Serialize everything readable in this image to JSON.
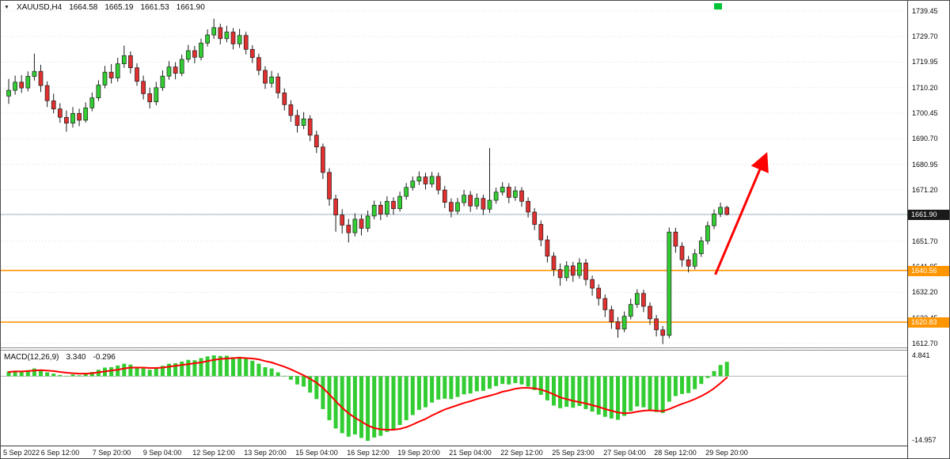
{
  "window": {
    "symbol_ohlc": {
      "marker": "▼",
      "symbol": "XAUUSD,H4",
      "open": "1664.58",
      "high": "1665.19",
      "low": "1661.53",
      "close": "1661.90"
    }
  },
  "chart_data": {
    "type": "candlestick",
    "title": "XAUUSD,H4 gold price chart with MACD",
    "symbol": "XAUUSD",
    "timeframe": "H4",
    "price_axis": {
      "ticks": [
        1739.45,
        1729.7,
        1719.95,
        1710.2,
        1700.45,
        1690.7,
        1680.95,
        1671.2,
        1661.45,
        1651.7,
        1641.95,
        1632.2,
        1622.45,
        1612.7
      ],
      "ylim": [
        1610.5,
        1741.5
      ],
      "grid": "dotted-horizontal"
    },
    "time_axis": {
      "labels": [
        "5 Sep 2022",
        "6 Sep 12:00",
        "7 Sep 20:00",
        "9 Sep 04:00",
        "12 Sep 12:00",
        "13 Sep 20:00",
        "15 Sep 04:00",
        "16 Sep 12:00",
        "19 Sep 20:00",
        "21 Sep 04:00",
        "22 Sep 12:00",
        "25 Sep 23:00",
        "27 Sep 04:00",
        "28 Sep 12:00",
        "29 Sep 20:00"
      ],
      "bars_per_label": 8
    },
    "colors": {
      "up": "#32CD32",
      "down": "#E03030",
      "wick": "#1c1c1c",
      "grid": "#dcdcdc"
    },
    "candles": [
      [
        1707.0,
        1713.5,
        1704.0,
        1709.2
      ],
      [
        1709.2,
        1714.8,
        1707.5,
        1712.3
      ],
      [
        1712.3,
        1715.0,
        1708.2,
        1710.1
      ],
      [
        1710.1,
        1716.4,
        1708.8,
        1714.5
      ],
      [
        1714.5,
        1723.2,
        1712.9,
        1716.4
      ],
      [
        1716.4,
        1718.9,
        1708.5,
        1711.0
      ],
      [
        1711.0,
        1712.6,
        1702.8,
        1705.2
      ],
      [
        1705.2,
        1707.9,
        1700.4,
        1702.1
      ],
      [
        1702.1,
        1704.3,
        1696.8,
        1698.9
      ],
      [
        1698.9,
        1701.5,
        1693.4,
        1696.7
      ],
      [
        1696.7,
        1702.8,
        1695.0,
        1700.4
      ],
      [
        1700.4,
        1702.2,
        1695.5,
        1697.8
      ],
      [
        1697.8,
        1704.6,
        1696.9,
        1702.5
      ],
      [
        1702.5,
        1708.4,
        1701.2,
        1706.3
      ],
      [
        1706.3,
        1713.0,
        1705.1,
        1711.2
      ],
      [
        1711.2,
        1718.5,
        1710.0,
        1716.1
      ],
      [
        1716.1,
        1719.2,
        1711.8,
        1713.9
      ],
      [
        1713.9,
        1721.6,
        1712.5,
        1719.3
      ],
      [
        1719.3,
        1726.2,
        1717.8,
        1722.4
      ],
      [
        1722.4,
        1724.0,
        1715.6,
        1717.8
      ],
      [
        1717.8,
        1719.5,
        1710.9,
        1712.6
      ],
      [
        1712.6,
        1714.8,
        1705.7,
        1707.9
      ],
      [
        1707.9,
        1710.2,
        1702.3,
        1704.8
      ],
      [
        1704.8,
        1712.4,
        1703.5,
        1710.2
      ],
      [
        1710.2,
        1716.8,
        1709.0,
        1714.6
      ],
      [
        1714.6,
        1720.3,
        1713.2,
        1718.1
      ],
      [
        1718.1,
        1719.9,
        1713.4,
        1715.7
      ],
      [
        1715.7,
        1722.8,
        1714.6,
        1721.0
      ],
      [
        1721.0,
        1726.5,
        1719.8,
        1724.3
      ],
      [
        1724.3,
        1726.1,
        1719.5,
        1721.8
      ],
      [
        1721.8,
        1728.9,
        1720.6,
        1727.2
      ],
      [
        1727.2,
        1732.4,
        1725.9,
        1730.3
      ],
      [
        1730.3,
        1736.5,
        1728.8,
        1733.1
      ],
      [
        1733.1,
        1734.6,
        1726.7,
        1728.9
      ],
      [
        1728.9,
        1733.8,
        1727.5,
        1731.4
      ],
      [
        1731.4,
        1732.9,
        1724.8,
        1726.9
      ],
      [
        1726.9,
        1732.6,
        1725.4,
        1730.1
      ],
      [
        1730.1,
        1731.5,
        1722.9,
        1724.8
      ],
      [
        1724.8,
        1726.4,
        1719.6,
        1721.7
      ],
      [
        1721.7,
        1723.2,
        1714.9,
        1716.8
      ],
      [
        1716.8,
        1718.4,
        1709.7,
        1711.9
      ],
      [
        1711.9,
        1716.6,
        1710.2,
        1714.3
      ],
      [
        1714.3,
        1715.8,
        1706.1,
        1708.2
      ],
      [
        1708.2,
        1709.9,
        1701.5,
        1703.7
      ],
      [
        1703.7,
        1705.4,
        1697.2,
        1699.6
      ],
      [
        1699.6,
        1701.8,
        1693.1,
        1695.8
      ],
      [
        1695.8,
        1700.9,
        1694.4,
        1698.3
      ],
      [
        1698.3,
        1699.7,
        1689.8,
        1692.1
      ],
      [
        1692.1,
        1693.8,
        1685.3,
        1687.6
      ],
      [
        1687.6,
        1688.9,
        1675.4,
        1677.9
      ],
      [
        1677.9,
        1679.5,
        1665.2,
        1667.8
      ],
      [
        1667.8,
        1669.4,
        1655.3,
        1661.7
      ],
      [
        1661.7,
        1663.9,
        1654.6,
        1657.8
      ],
      [
        1657.8,
        1660.2,
        1651.2,
        1654.9
      ],
      [
        1654.9,
        1662.3,
        1653.5,
        1660.1
      ],
      [
        1660.1,
        1661.8,
        1653.9,
        1656.6
      ],
      [
        1656.6,
        1663.4,
        1655.2,
        1661.3
      ],
      [
        1661.3,
        1667.2,
        1660.0,
        1665.4
      ],
      [
        1665.4,
        1666.9,
        1659.7,
        1662.0
      ],
      [
        1662.0,
        1668.8,
        1660.9,
        1666.9
      ],
      [
        1666.9,
        1668.4,
        1661.8,
        1664.1
      ],
      [
        1664.1,
        1670.6,
        1663.0,
        1668.8
      ],
      [
        1668.8,
        1673.9,
        1667.5,
        1672.2
      ],
      [
        1672.2,
        1676.4,
        1671.0,
        1674.6
      ],
      [
        1674.6,
        1678.3,
        1673.1,
        1676.2
      ],
      [
        1676.2,
        1677.8,
        1671.4,
        1673.5
      ],
      [
        1673.5,
        1678.1,
        1672.2,
        1676.4
      ],
      [
        1676.4,
        1677.9,
        1669.5,
        1671.2
      ],
      [
        1671.2,
        1672.8,
        1664.3,
        1666.5
      ],
      [
        1666.5,
        1668.0,
        1660.8,
        1663.1
      ],
      [
        1663.1,
        1668.2,
        1661.9,
        1666.4
      ],
      [
        1666.4,
        1671.3,
        1665.0,
        1669.2
      ],
      [
        1669.2,
        1670.8,
        1662.9,
        1665.1
      ],
      [
        1665.1,
        1669.9,
        1663.8,
        1668.0
      ],
      [
        1668.0,
        1669.4,
        1661.7,
        1663.9
      ],
      [
        1663.9,
        1687.2,
        1662.5,
        1667.3
      ],
      [
        1667.3,
        1672.1,
        1666.0,
        1670.4
      ],
      [
        1670.4,
        1674.2,
        1669.1,
        1672.3
      ],
      [
        1672.3,
        1673.8,
        1666.2,
        1668.4
      ],
      [
        1668.4,
        1672.6,
        1667.1,
        1670.9
      ],
      [
        1670.9,
        1672.3,
        1664.8,
        1666.9
      ],
      [
        1666.9,
        1668.4,
        1660.7,
        1662.8
      ],
      [
        1662.8,
        1664.3,
        1655.9,
        1658.1
      ],
      [
        1658.1,
        1659.6,
        1649.8,
        1652.2
      ],
      [
        1652.2,
        1653.9,
        1643.6,
        1646.0
      ],
      [
        1646.0,
        1647.5,
        1638.4,
        1640.9
      ],
      [
        1640.9,
        1643.2,
        1634.7,
        1637.8
      ],
      [
        1637.8,
        1644.1,
        1636.5,
        1642.3
      ],
      [
        1642.3,
        1643.8,
        1636.2,
        1638.7
      ],
      [
        1638.7,
        1645.2,
        1637.4,
        1643.4
      ],
      [
        1643.4,
        1644.9,
        1634.8,
        1637.1
      ],
      [
        1637.1,
        1638.6,
        1630.9,
        1633.8
      ],
      [
        1633.8,
        1635.3,
        1627.2,
        1629.9
      ],
      [
        1629.9,
        1631.4,
        1622.8,
        1625.6
      ],
      [
        1625.6,
        1627.1,
        1618.3,
        1621.0
      ],
      [
        1621.0,
        1622.8,
        1614.9,
        1618.2
      ],
      [
        1618.2,
        1624.9,
        1617.0,
        1623.1
      ],
      [
        1623.1,
        1629.8,
        1621.9,
        1627.6
      ],
      [
        1627.6,
        1633.4,
        1626.3,
        1631.8
      ],
      [
        1631.8,
        1633.2,
        1624.7,
        1626.9
      ],
      [
        1626.9,
        1628.4,
        1619.8,
        1622.1
      ],
      [
        1622.1,
        1623.6,
        1615.4,
        1617.9
      ],
      [
        1617.9,
        1619.4,
        1612.5,
        1615.8
      ],
      [
        1615.8,
        1656.9,
        1614.7,
        1655.2
      ],
      [
        1655.2,
        1656.8,
        1647.3,
        1649.8
      ],
      [
        1649.8,
        1651.3,
        1641.9,
        1644.6
      ],
      [
        1644.6,
        1646.1,
        1639.8,
        1642.2
      ],
      [
        1642.2,
        1648.7,
        1641.0,
        1646.9
      ],
      [
        1646.9,
        1653.4,
        1645.7,
        1651.8
      ],
      [
        1651.8,
        1659.2,
        1650.5,
        1657.6
      ],
      [
        1657.6,
        1663.8,
        1656.3,
        1662.1
      ],
      [
        1662.1,
        1666.4,
        1660.9,
        1664.6
      ],
      [
        1664.58,
        1665.19,
        1661.53,
        1661.9
      ]
    ],
    "overlays": {
      "bid": {
        "price": 1661.9,
        "label": "1661.90",
        "line_color": "#9fb9c6",
        "tag_bg": "#1a1a1a"
      },
      "lines": [
        {
          "price": 1640.56,
          "label": "1640.56",
          "color": "#ff9500"
        },
        {
          "price": 1620.83,
          "label": "1620.83",
          "color": "#ff9500"
        }
      ],
      "arrow": {
        "from": {
          "bar": 110.2,
          "price": 1639.0
        },
        "to": {
          "bar": 118.0,
          "price": 1684.0
        },
        "color": "#ff0000"
      }
    },
    "macd": {
      "type": "bar+line",
      "label": "MACD(12,26,9)",
      "main_value": "3.340",
      "signal_value": "-0.296",
      "scale_max": "4.841",
      "scale_min": "-14.957",
      "ylim": [
        -15.5,
        5.5
      ],
      "histogram_color": "#32CD32",
      "signal_color": "#ff0000",
      "zero_line_color": "#b4b4b4",
      "histogram": [
        1.1,
        1.3,
        1.0,
        1.4,
        1.8,
        1.5,
        0.9,
        0.6,
        0.3,
        0.1,
        0.4,
        0.2,
        0.6,
        1.0,
        1.5,
        2.0,
        2.1,
        2.5,
        2.9,
        2.7,
        2.2,
        1.8,
        1.5,
        1.9,
        2.4,
        2.9,
        3.0,
        3.4,
        3.8,
        3.7,
        4.2,
        4.6,
        4.841,
        4.7,
        4.75,
        4.4,
        4.5,
        4.1,
        3.6,
        2.9,
        2.1,
        1.8,
        0.9,
        0.1,
        -0.8,
        -1.9,
        -2.4,
        -3.8,
        -5.3,
        -7.6,
        -10.2,
        -12.1,
        -13.2,
        -14.0,
        -13.5,
        -14.3,
        -14.957,
        -14.2,
        -13.8,
        -12.9,
        -12.4,
        -11.3,
        -10.2,
        -9.0,
        -7.8,
        -7.2,
        -6.1,
        -5.4,
        -5.2,
        -5.3,
        -4.8,
        -4.2,
        -4.0,
        -3.5,
        -3.4,
        -2.9,
        -2.3,
        -1.8,
        -1.9,
        -1.6,
        -1.9,
        -2.4,
        -3.2,
        -4.3,
        -5.6,
        -6.8,
        -7.4,
        -7.1,
        -7.3,
        -6.9,
        -7.6,
        -8.2,
        -8.9,
        -9.4,
        -9.8,
        -10.1,
        -9.2,
        -8.1,
        -7.0,
        -7.2,
        -7.8,
        -8.3,
        -8.5,
        -5.9,
        -4.6,
        -4.1,
        -3.9,
        -3.0,
        -1.8,
        -0.4,
        1.2,
        2.6,
        3.34
      ],
      "signal": [
        1.0,
        1.1,
        1.1,
        1.2,
        1.3,
        1.4,
        1.3,
        1.2,
        1.0,
        0.8,
        0.7,
        0.6,
        0.6,
        0.7,
        0.9,
        1.1,
        1.3,
        1.5,
        1.8,
        2.0,
        2.0,
        2.0,
        1.9,
        1.9,
        2.0,
        2.2,
        2.4,
        2.6,
        2.8,
        3.0,
        3.2,
        3.5,
        3.8,
        4.0,
        4.1,
        4.2,
        4.3,
        4.2,
        4.1,
        3.9,
        3.5,
        3.2,
        2.7,
        2.2,
        1.6,
        0.9,
        0.2,
        -0.6,
        -1.5,
        -2.7,
        -4.2,
        -5.8,
        -7.3,
        -8.6,
        -9.6,
        -10.5,
        -11.4,
        -12.0,
        -12.3,
        -12.4,
        -12.4,
        -12.2,
        -11.8,
        -11.2,
        -10.5,
        -9.9,
        -9.1,
        -8.4,
        -7.7,
        -7.2,
        -6.7,
        -6.2,
        -5.8,
        -5.3,
        -4.9,
        -4.5,
        -4.1,
        -3.6,
        -3.3,
        -2.9,
        -2.7,
        -2.7,
        -2.8,
        -3.1,
        -3.6,
        -4.2,
        -4.9,
        -5.3,
        -5.7,
        -6.0,
        -6.3,
        -6.7,
        -7.1,
        -7.6,
        -8.0,
        -8.4,
        -8.6,
        -8.5,
        -8.2,
        -8.0,
        -7.9,
        -8.0,
        -8.1,
        -7.6,
        -7.0,
        -6.4,
        -5.9,
        -5.3,
        -4.6,
        -3.8,
        -2.8,
        -1.6,
        -0.296
      ]
    }
  }
}
